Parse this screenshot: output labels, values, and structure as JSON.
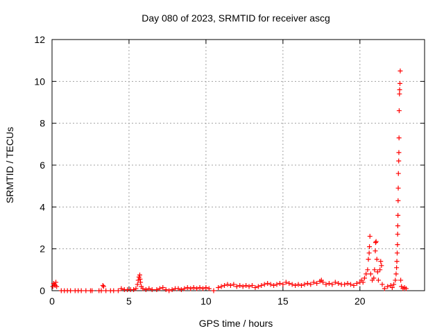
{
  "chart_data": {
    "type": "scatter",
    "title": "Day 080 of 2023, SRMTID for receiver ascg",
    "xlabel": "GPS time / hours",
    "ylabel": "SRMTID / TECUs",
    "xlim": [
      0,
      24.2
    ],
    "ylim": [
      0,
      12
    ],
    "xticks": [
      0,
      5,
      10,
      15,
      20
    ],
    "yticks": [
      0,
      2,
      4,
      6,
      8,
      10,
      12
    ],
    "grid": true,
    "marker": "+",
    "color": "#ff0000",
    "series": [
      {
        "points": [
          [
            0.05,
            0.2
          ],
          [
            0.1,
            0.35
          ],
          [
            0.15,
            0.3
          ],
          [
            0.2,
            0.25
          ],
          [
            0.25,
            0.4
          ],
          [
            0.3,
            0.2
          ],
          [
            0.6,
            0.0
          ],
          [
            0.8,
            0.0
          ],
          [
            1.0,
            0.0
          ],
          [
            1.2,
            0.0
          ],
          [
            1.5,
            0.0
          ],
          [
            1.7,
            0.0
          ],
          [
            1.9,
            0.0
          ],
          [
            2.2,
            0.0
          ],
          [
            2.5,
            0.0
          ],
          [
            2.6,
            0.0
          ],
          [
            3.05,
            0.0
          ],
          [
            3.2,
            0.0
          ],
          [
            3.3,
            0.25
          ],
          [
            3.35,
            0.2
          ],
          [
            3.5,
            0.0
          ],
          [
            3.8,
            0.0
          ],
          [
            4.0,
            0.0
          ],
          [
            4.3,
            0.0
          ],
          [
            4.5,
            0.1
          ],
          [
            4.7,
            0.05
          ],
          [
            4.9,
            0.05
          ],
          [
            5.1,
            0.05
          ],
          [
            5.3,
            0.05
          ],
          [
            5.45,
            0.1
          ],
          [
            5.55,
            0.3
          ],
          [
            5.6,
            0.5
          ],
          [
            5.65,
            0.65
          ],
          [
            5.7,
            0.75
          ],
          [
            5.72,
            0.55
          ],
          [
            5.75,
            0.4
          ],
          [
            5.8,
            0.2
          ],
          [
            5.9,
            0.1
          ],
          [
            6.1,
            0.05
          ],
          [
            6.3,
            0.1
          ],
          [
            6.5,
            0.05
          ],
          [
            6.8,
            0.05
          ],
          [
            7.0,
            0.1
          ],
          [
            7.2,
            0.15
          ],
          [
            7.4,
            0.05
          ],
          [
            7.6,
            0.0
          ],
          [
            7.8,
            0.05
          ],
          [
            8.0,
            0.1
          ],
          [
            8.2,
            0.1
          ],
          [
            8.4,
            0.05
          ],
          [
            8.6,
            0.1
          ],
          [
            8.8,
            0.15
          ],
          [
            9.0,
            0.1
          ],
          [
            9.2,
            0.15
          ],
          [
            9.4,
            0.1
          ],
          [
            9.6,
            0.15
          ],
          [
            9.8,
            0.1
          ],
          [
            10.0,
            0.15
          ],
          [
            10.2,
            0.1
          ],
          [
            10.5,
            0.0
          ],
          [
            10.8,
            0.15
          ],
          [
            11.0,
            0.2
          ],
          [
            11.2,
            0.25
          ],
          [
            11.4,
            0.3
          ],
          [
            11.6,
            0.25
          ],
          [
            11.8,
            0.3
          ],
          [
            12.0,
            0.2
          ],
          [
            12.2,
            0.25
          ],
          [
            12.4,
            0.2
          ],
          [
            12.6,
            0.25
          ],
          [
            12.8,
            0.2
          ],
          [
            13.0,
            0.25
          ],
          [
            13.2,
            0.15
          ],
          [
            13.4,
            0.2
          ],
          [
            13.6,
            0.25
          ],
          [
            13.8,
            0.3
          ],
          [
            14.0,
            0.35
          ],
          [
            14.2,
            0.3
          ],
          [
            14.4,
            0.25
          ],
          [
            14.6,
            0.3
          ],
          [
            14.8,
            0.35
          ],
          [
            15.0,
            0.3
          ],
          [
            15.2,
            0.4
          ],
          [
            15.4,
            0.35
          ],
          [
            15.6,
            0.3
          ],
          [
            15.8,
            0.25
          ],
          [
            16.0,
            0.3
          ],
          [
            16.2,
            0.25
          ],
          [
            16.4,
            0.3
          ],
          [
            16.6,
            0.35
          ],
          [
            16.8,
            0.3
          ],
          [
            17.0,
            0.4
          ],
          [
            17.2,
            0.35
          ],
          [
            17.4,
            0.45
          ],
          [
            17.5,
            0.5
          ],
          [
            17.6,
            0.4
          ],
          [
            17.8,
            0.3
          ],
          [
            18.0,
            0.35
          ],
          [
            18.2,
            0.3
          ],
          [
            18.4,
            0.4
          ],
          [
            18.6,
            0.35
          ],
          [
            18.8,
            0.3
          ],
          [
            19.0,
            0.3
          ],
          [
            19.2,
            0.35
          ],
          [
            19.4,
            0.3
          ],
          [
            19.6,
            0.25
          ],
          [
            19.8,
            0.35
          ],
          [
            20.0,
            0.4
          ],
          [
            20.1,
            0.5
          ],
          [
            20.2,
            0.4
          ],
          [
            20.3,
            0.6
          ],
          [
            20.4,
            0.8
          ],
          [
            20.5,
            1.0
          ],
          [
            20.55,
            1.5
          ],
          [
            20.6,
            1.8
          ],
          [
            20.62,
            2.1
          ],
          [
            20.65,
            2.6
          ],
          [
            20.7,
            0.8
          ],
          [
            20.8,
            0.5
          ],
          [
            20.9,
            0.6
          ],
          [
            20.95,
            1.0
          ],
          [
            21.0,
            1.9
          ],
          [
            21.02,
            2.3
          ],
          [
            21.05,
            2.35
          ],
          [
            21.1,
            1.5
          ],
          [
            21.15,
            0.9
          ],
          [
            21.2,
            0.5
          ],
          [
            21.3,
            1.0
          ],
          [
            21.35,
            1.4
          ],
          [
            21.4,
            1.2
          ],
          [
            21.45,
            0.3
          ],
          [
            21.6,
            0.1
          ],
          [
            21.8,
            0.2
          ],
          [
            22.0,
            0.25
          ],
          [
            22.1,
            0.15
          ],
          [
            22.2,
            0.3
          ],
          [
            22.3,
            0.5
          ],
          [
            22.35,
            0.8
          ],
          [
            22.38,
            1.1
          ],
          [
            22.4,
            1.4
          ],
          [
            22.42,
            1.8
          ],
          [
            22.44,
            2.2
          ],
          [
            22.45,
            2.7
          ],
          [
            22.46,
            3.1
          ],
          [
            22.47,
            3.6
          ],
          [
            22.48,
            4.3
          ],
          [
            22.49,
            4.9
          ],
          [
            22.5,
            5.6
          ],
          [
            22.52,
            6.2
          ],
          [
            22.53,
            6.6
          ],
          [
            22.54,
            7.3
          ],
          [
            22.55,
            8.6
          ],
          [
            22.57,
            9.4
          ],
          [
            22.58,
            9.6
          ],
          [
            22.6,
            9.9
          ],
          [
            22.62,
            10.5
          ],
          [
            22.65,
            0.5
          ],
          [
            22.7,
            0.2
          ],
          [
            22.8,
            0.1
          ],
          [
            22.9,
            0.15
          ],
          [
            23.0,
            0.1
          ]
        ]
      }
    ]
  }
}
